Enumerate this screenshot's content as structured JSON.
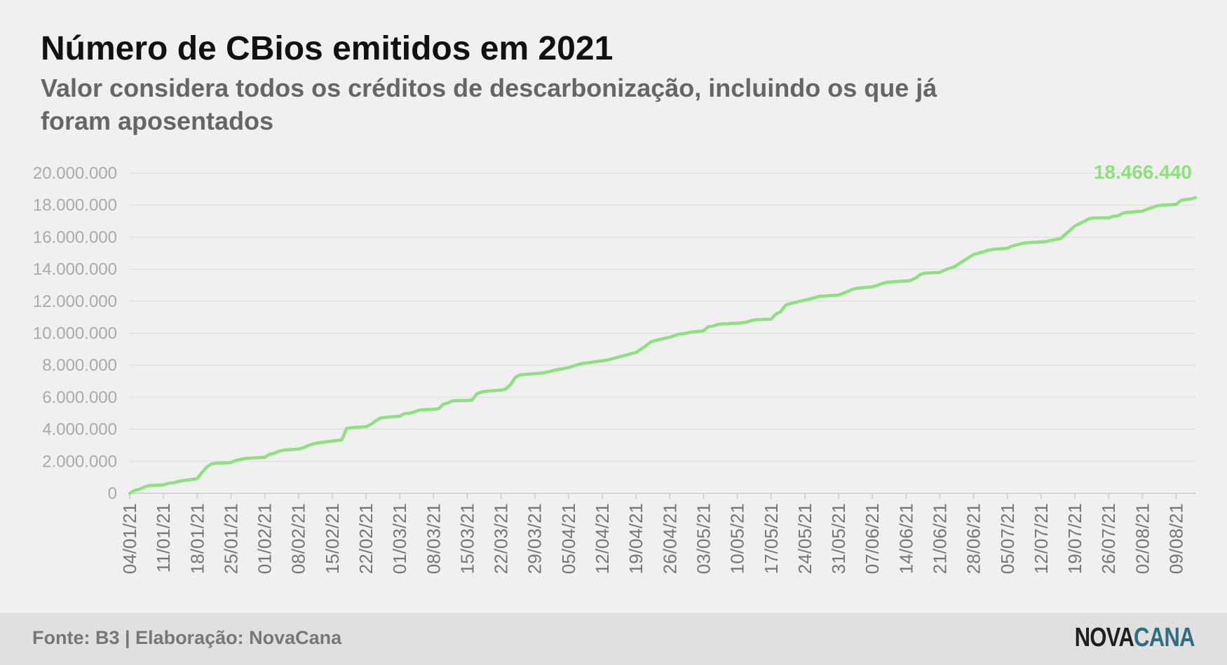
{
  "header": {
    "title": "Número de CBios emitidos em 2021",
    "subtitle": "Valor considera todos os créditos de descarbonização, incluindo os que já foram aposentados"
  },
  "footer": {
    "source": "Fonte: B3 | Elaboração: NovaCana",
    "logo_part1": "NOVA",
    "logo_part2": "CANA"
  },
  "colors": {
    "line": "#8ee080",
    "grid": "#dcdcdc",
    "tick_text": "#aaaaaa",
    "axis": "#cccccc"
  },
  "chart_data": {
    "type": "line",
    "title": "Número de CBios emitidos em 2021",
    "xlabel": "",
    "ylabel": "",
    "ylim": [
      0,
      20000000
    ],
    "yticks": [
      0,
      2000000,
      4000000,
      6000000,
      8000000,
      10000000,
      12000000,
      14000000,
      16000000,
      18000000,
      20000000
    ],
    "ytick_labels": [
      "0",
      "2.000.000",
      "4.000.000",
      "6.000.000",
      "8.000.000",
      "10.000.000",
      "12.000.000",
      "14.000.000",
      "16.000.000",
      "18.000.000",
      "20.000.000"
    ],
    "xlim": [
      "2021-01-04",
      "2021-08-13"
    ],
    "xtick_labels": [
      "04/01/21",
      "11/01/21",
      "18/01/21",
      "25/01/21",
      "01/02/21",
      "08/02/21",
      "15/02/21",
      "22/02/21",
      "01/03/21",
      "08/03/21",
      "15/03/21",
      "22/03/21",
      "29/03/21",
      "05/04/21",
      "12/04/21",
      "19/04/21",
      "26/04/21",
      "03/05/21",
      "10/05/21",
      "17/05/21",
      "24/05/21",
      "31/05/21",
      "07/06/21",
      "14/06/21",
      "21/06/21",
      "28/06/21",
      "05/07/21",
      "12/07/21",
      "19/07/21",
      "26/07/21",
      "02/08/21",
      "09/08/21"
    ],
    "grid": true,
    "last_value_label": "18.466.440",
    "series": [
      {
        "x": [
          "2021-01-04",
          "2021-01-05",
          "2021-01-06",
          "2021-01-07",
          "2021-01-08",
          "2021-01-11",
          "2021-01-12",
          "2021-01-13",
          "2021-01-14",
          "2021-01-15",
          "2021-01-18",
          "2021-01-19",
          "2021-01-20",
          "2021-01-21",
          "2021-01-22",
          "2021-01-25",
          "2021-01-26",
          "2021-01-27",
          "2021-01-28",
          "2021-01-29",
          "2021-02-01",
          "2021-02-02",
          "2021-02-03",
          "2021-02-04",
          "2021-02-05",
          "2021-02-08",
          "2021-02-09",
          "2021-02-10",
          "2021-02-11",
          "2021-02-12",
          "2021-02-15",
          "2021-02-16",
          "2021-02-17",
          "2021-02-18",
          "2021-02-19",
          "2021-02-22",
          "2021-02-23",
          "2021-02-24",
          "2021-02-25",
          "2021-02-26",
          "2021-03-01",
          "2021-03-02",
          "2021-03-03",
          "2021-03-04",
          "2021-03-05",
          "2021-03-08",
          "2021-03-09",
          "2021-03-10",
          "2021-03-11",
          "2021-03-12",
          "2021-03-15",
          "2021-03-16",
          "2021-03-17",
          "2021-03-18",
          "2021-03-19",
          "2021-03-22",
          "2021-03-23",
          "2021-03-24",
          "2021-03-25",
          "2021-03-26",
          "2021-03-29",
          "2021-03-30",
          "2021-03-31",
          "2021-04-01",
          "2021-04-02",
          "2021-04-05",
          "2021-04-06",
          "2021-04-07",
          "2021-04-08",
          "2021-04-09",
          "2021-04-12",
          "2021-04-13",
          "2021-04-14",
          "2021-04-15",
          "2021-04-16",
          "2021-04-19",
          "2021-04-20",
          "2021-04-21",
          "2021-04-22",
          "2021-04-23",
          "2021-04-26",
          "2021-04-27",
          "2021-04-28",
          "2021-04-29",
          "2021-04-30",
          "2021-05-03",
          "2021-05-04",
          "2021-05-05",
          "2021-05-06",
          "2021-05-07",
          "2021-05-10",
          "2021-05-11",
          "2021-05-12",
          "2021-05-13",
          "2021-05-14",
          "2021-05-17",
          "2021-05-18",
          "2021-05-19",
          "2021-05-20",
          "2021-05-21",
          "2021-05-24",
          "2021-05-25",
          "2021-05-26",
          "2021-05-27",
          "2021-05-28",
          "2021-05-31",
          "2021-06-01",
          "2021-06-02",
          "2021-06-03",
          "2021-06-04",
          "2021-06-07",
          "2021-06-08",
          "2021-06-09",
          "2021-06-10",
          "2021-06-11",
          "2021-06-14",
          "2021-06-15",
          "2021-06-16",
          "2021-06-17",
          "2021-06-18",
          "2021-06-21",
          "2021-06-22",
          "2021-06-23",
          "2021-06-24",
          "2021-06-25",
          "2021-06-28",
          "2021-06-29",
          "2021-06-30",
          "2021-07-01",
          "2021-07-02",
          "2021-07-05",
          "2021-07-06",
          "2021-07-07",
          "2021-07-08",
          "2021-07-09",
          "2021-07-12",
          "2021-07-13",
          "2021-07-14",
          "2021-07-15",
          "2021-07-16",
          "2021-07-19",
          "2021-07-20",
          "2021-07-21",
          "2021-07-22",
          "2021-07-23",
          "2021-07-26",
          "2021-07-27",
          "2021-07-28",
          "2021-07-29",
          "2021-07-30",
          "2021-08-02",
          "2021-08-03",
          "2021-08-04",
          "2021-08-05",
          "2021-08-06",
          "2021-08-09",
          "2021-08-10",
          "2021-08-11",
          "2021-08-12",
          "2021-08-13"
        ],
        "values": [
          0,
          180000,
          250000,
          400000,
          480000,
          530000,
          620000,
          650000,
          740000,
          790000,
          920000,
          1300000,
          1650000,
          1840000,
          1880000,
          1920000,
          2050000,
          2120000,
          2180000,
          2200000,
          2250000,
          2450000,
          2500000,
          2640000,
          2700000,
          2760000,
          2850000,
          2980000,
          3080000,
          3150000,
          3260000,
          3300000,
          3350000,
          4060000,
          4100000,
          4160000,
          4300000,
          4520000,
          4700000,
          4750000,
          4820000,
          4980000,
          5000000,
          5080000,
          5200000,
          5250000,
          5280000,
          5560000,
          5650000,
          5780000,
          5800000,
          5820000,
          6220000,
          6330000,
          6380000,
          6440000,
          6520000,
          6800000,
          7250000,
          7400000,
          7480000,
          7500000,
          7530000,
          7600000,
          7680000,
          7850000,
          7950000,
          8050000,
          8120000,
          8150000,
          8280000,
          8320000,
          8400000,
          8480000,
          8560000,
          8800000,
          9000000,
          9200000,
          9450000,
          9550000,
          9750000,
          9850000,
          9950000,
          9980000,
          10050000,
          10150000,
          10400000,
          10450000,
          10550000,
          10580000,
          10620000,
          10650000,
          10700000,
          10800000,
          10850000,
          10870000,
          11200000,
          11350000,
          11750000,
          11850000,
          12070000,
          12130000,
          12220000,
          12300000,
          12320000,
          12380000,
          12500000,
          12620000,
          12750000,
          12820000,
          12900000,
          12980000,
          13100000,
          13180000,
          13200000,
          13260000,
          13300000,
          13450000,
          13680000,
          13750000,
          13800000,
          13950000,
          14050000,
          14150000,
          14350000,
          14920000,
          15000000,
          15080000,
          15180000,
          15240000,
          15300000,
          15450000,
          15520000,
          15600000,
          15650000,
          15700000,
          15720000,
          15800000,
          15850000,
          15900000,
          16700000,
          16850000,
          17000000,
          17150000,
          17200000,
          17210000,
          17300000,
          17350000,
          17500000,
          17550000,
          17620000,
          17750000,
          17850000,
          17950000,
          18000000,
          18050000,
          18300000,
          18340000,
          18380000,
          18466440
        ]
      }
    ]
  }
}
